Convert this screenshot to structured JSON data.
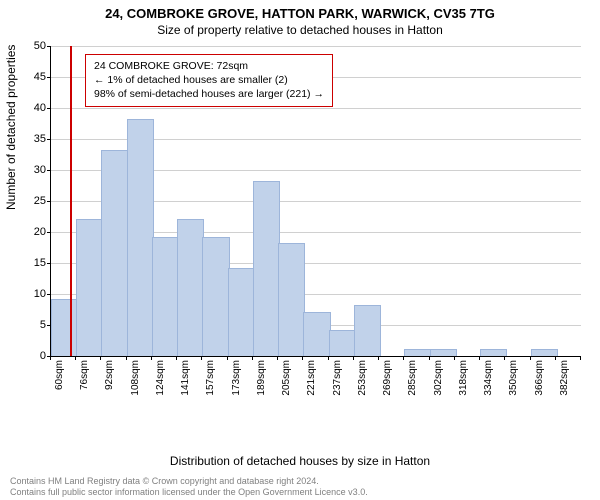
{
  "title_main": "24, COMBROKE GROVE, HATTON PARK, WARWICK, CV35 7TG",
  "title_sub": "Size of property relative to detached houses in Hatton",
  "chart": {
    "type": "histogram",
    "ylabel": "Number of detached properties",
    "xlabel": "Distribution of detached houses by size in Hatton",
    "ylim": [
      0,
      50
    ],
    "ytick_step": 5,
    "x_categories": [
      "60sqm",
      "76sqm",
      "92sqm",
      "108sqm",
      "124sqm",
      "141sqm",
      "157sqm",
      "173sqm",
      "189sqm",
      "205sqm",
      "221sqm",
      "237sqm",
      "253sqm",
      "269sqm",
      "285sqm",
      "302sqm",
      "318sqm",
      "334sqm",
      "350sqm",
      "366sqm",
      "382sqm"
    ],
    "bar_values": [
      9,
      22,
      33,
      38,
      19,
      22,
      19,
      14,
      28,
      18,
      7,
      4,
      8,
      0,
      1,
      1,
      0,
      1,
      0,
      1,
      0
    ],
    "bar_color": "#c1d2ea",
    "bar_border": "#9db5da",
    "bar_width_ratio": 1.0,
    "background_color": "#ffffff",
    "grid_color": "#d0d0d0",
    "vline": {
      "x_index": 0.75,
      "color": "#cc0000"
    },
    "annotation": {
      "lines": [
        "24 COMBROKE GROVE: 72sqm",
        "← 1% of detached houses are smaller (2)",
        "98% of semi-detached houses are larger (221) →"
      ],
      "border_color": "#cc0000",
      "text_color": "#000000"
    }
  },
  "footer": {
    "line1": "Contains HM Land Registry data © Crown copyright and database right 2024.",
    "line2": "Contains full public sector information licensed under the Open Government Licence v3.0."
  }
}
